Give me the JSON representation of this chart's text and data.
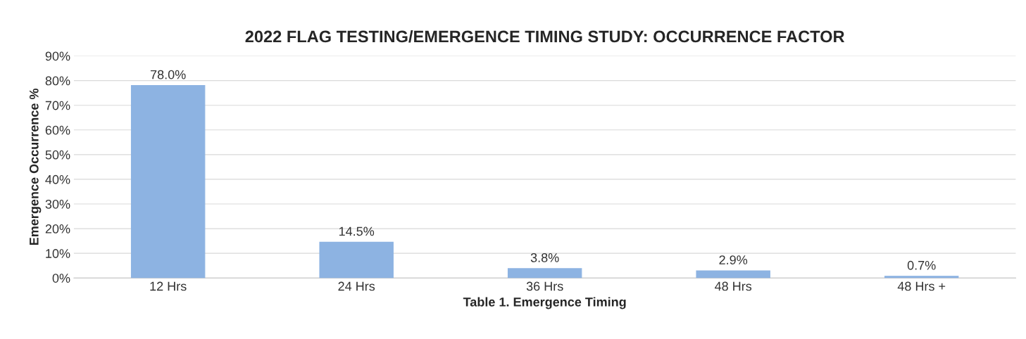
{
  "chart_data": {
    "type": "bar",
    "title": "2022 FLAG TESTING/EMERGENCE TIMING STUDY: OCCURRENCE FACTOR",
    "xlabel": "Table 1. Emergence Timing",
    "ylabel": "Emergence Occurrence %",
    "categories": [
      "12 Hrs",
      "24 Hrs",
      "36 Hrs",
      "48 Hrs",
      "48 Hrs +"
    ],
    "values": [
      78.0,
      14.5,
      3.8,
      2.9,
      0.7
    ],
    "color": "#8db3e2",
    "value_labels": [
      "78.0%",
      "14.5%",
      "3.8%",
      "2.9%",
      "0.7%"
    ],
    "ylim": [
      0,
      90
    ],
    "yticks": [
      {
        "value": 0,
        "label": "0%"
      },
      {
        "value": 10,
        "label": "10%"
      },
      {
        "value": 20,
        "label": "20%"
      },
      {
        "value": 30,
        "label": "30%"
      },
      {
        "value": 40,
        "label": "40%"
      },
      {
        "value": 50,
        "label": "50%"
      },
      {
        "value": 60,
        "label": "60%"
      },
      {
        "value": 70,
        "label": "70%"
      },
      {
        "value": 80,
        "label": "80%"
      },
      {
        "value": 90,
        "label": "90%"
      }
    ],
    "grid": "y"
  }
}
